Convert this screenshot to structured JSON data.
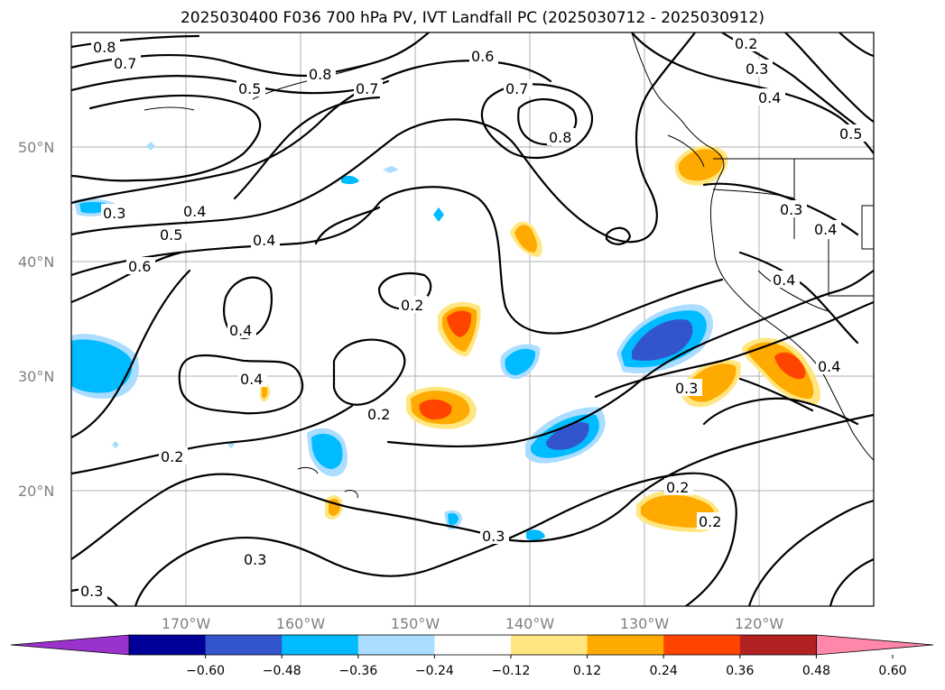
{
  "title": "2025030400 F036 700 hPa PV, IVT Landfall PC (2025030712 - 2025030912)",
  "lon_ticks": [
    "170°W",
    "160°W",
    "150°W",
    "140°W",
    "130°W",
    "120°W"
  ],
  "lat_ticks": [
    "50°N",
    "40°N",
    "30°N",
    "20°N"
  ],
  "colorbar": {
    "tick_labels": [
      "−0.60",
      "−0.48",
      "−0.36",
      "−0.24",
      "−0.12",
      "0.12",
      "0.24",
      "0.36",
      "0.48",
      "0.60"
    ],
    "colors": [
      "#9933cc",
      "#000099",
      "#3355cc",
      "#00bbff",
      "#aaddff",
      "#ffffff",
      "#ffe680",
      "#ffaa00",
      "#ff4400",
      "#b22222",
      "#ff88aa"
    ]
  },
  "contour_labels": [
    "0.8",
    "0.7",
    "0.8",
    "0.7",
    "0.6",
    "0.5",
    "0.7",
    "0.8",
    "0.2",
    "0.3",
    "0.4",
    "0.5",
    "0.3",
    "0.4",
    "0.5",
    "0.4",
    "0.6",
    "0.3",
    "0.4",
    "0.4",
    "0.2",
    "0.4",
    "0.2",
    "0.3",
    "0.2",
    "0.2",
    "0.2",
    "0.3",
    "0.3",
    "0.4",
    "0.3",
    "0.4"
  ],
  "colors": {
    "positive_shade": "#ffaa00",
    "negative_shade": "#00bbff",
    "contour": "#000000"
  }
}
